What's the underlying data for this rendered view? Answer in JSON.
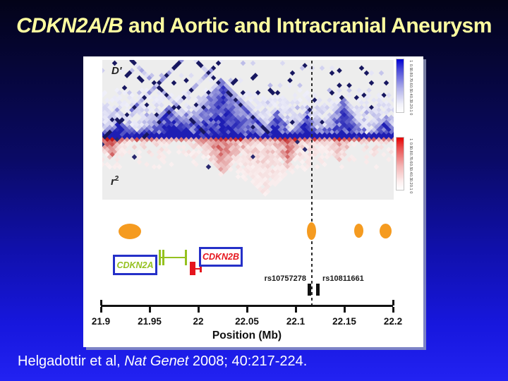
{
  "title": {
    "italic_part": "CDKN2A/B",
    "regular_part": " and Aortic and Intracranial Aneurysm"
  },
  "figure": {
    "dprime_label": "D'",
    "r2_label_base": "r",
    "r2_label_exponent": "2",
    "legends": {
      "blue": {
        "top_color": "#0000d2",
        "ticks": [
          "1",
          "0.9",
          "0.8",
          "0.7",
          "0.6",
          "0.5",
          "0.4",
          "0.3",
          "0.2",
          "0.1",
          "0"
        ]
      },
      "red": {
        "top_color": "#e60000",
        "ticks": [
          "1",
          "0.9",
          "0.8",
          "0.7",
          "0.6",
          "0.5",
          "0.4",
          "0.3",
          "0.2",
          "0.1",
          "0"
        ]
      }
    },
    "genes": [
      {
        "name": "CDKN2A",
        "label_color": "#95c11f"
      },
      {
        "name": "CDKN2B",
        "label_color": "#e5151d"
      }
    ],
    "snps": [
      {
        "id": "rs10757278"
      },
      {
        "id": "rs10811661"
      }
    ],
    "axis": {
      "tick_labels": [
        "21.9",
        "21.95",
        "22",
        "22.05",
        "22.1",
        "22.15",
        "22.2"
      ],
      "title": "Position (Mb)"
    },
    "highlight_color": "#f59b20"
  },
  "citation": {
    "authors": "Helgadottir et al, ",
    "journal": "Nat Genet",
    "details": " 2008; 40:217-224."
  },
  "chart_data": {
    "type": "heatmap",
    "subtype": "linkage-disequilibrium-triangle-plot",
    "title": "CDKN2A/B and Aortic and Intracranial Aneurysm",
    "panels": [
      {
        "name": "D'",
        "position": "upper",
        "colormap": "white-to-blue",
        "scale_ticks": [
          1,
          0.9,
          0.8,
          0.7,
          0.6,
          0.5,
          0.4,
          0.3,
          0.2,
          0.1,
          0
        ]
      },
      {
        "name": "r2",
        "position": "lower",
        "colormap": "white-to-red",
        "scale_ticks": [
          1,
          0.9,
          0.8,
          0.7,
          0.6,
          0.5,
          0.4,
          0.3,
          0.2,
          0.1,
          0
        ]
      }
    ],
    "xlabel": "Position (Mb)",
    "x_range": [
      21.9,
      22.2
    ],
    "x_ticks": [
      21.9,
      21.95,
      22,
      22.05,
      22.1,
      22.15,
      22.2
    ],
    "annotations": {
      "genes": [
        {
          "name": "CDKN2A",
          "approx_start_mb": 21.96,
          "approx_end_mb": 21.99
        },
        {
          "name": "CDKN2B",
          "approx_start_mb": 21.99,
          "approx_end_mb": 22.0
        }
      ],
      "snps": [
        {
          "id": "rs10757278",
          "approx_position_mb": 22.114
        },
        {
          "id": "rs10811661",
          "approx_position_mb": 22.123
        }
      ],
      "dashed_line_mb": 22.117,
      "highlighted_loci_mb": [
        21.93,
        22.12,
        22.16,
        22.19
      ]
    },
    "citation": "Helgadottir et al, Nat Genet 2008; 40:217-224."
  }
}
